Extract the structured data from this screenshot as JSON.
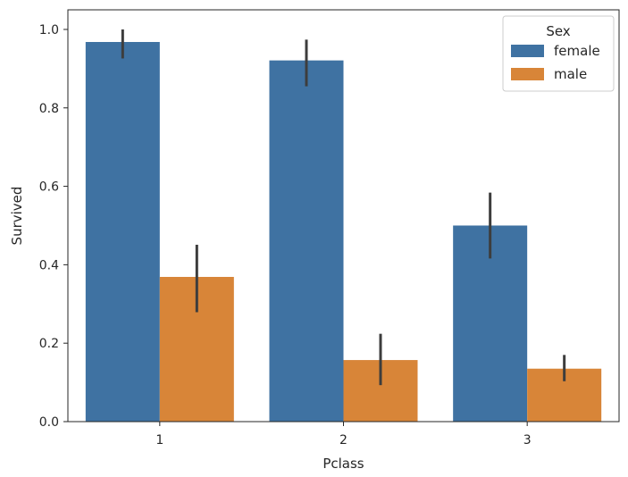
{
  "chart_data": {
    "type": "bar",
    "categories": [
      "1",
      "2",
      "3"
    ],
    "series": [
      {
        "name": "female",
        "color": "#3f72a2",
        "values": [
          0.968,
          0.921,
          0.5
        ],
        "ci": [
          [
            0.926,
            1.0
          ],
          [
            0.855,
            0.974
          ],
          [
            0.416,
            0.584
          ]
        ]
      },
      {
        "name": "male",
        "color": "#d88538",
        "values": [
          0.369,
          0.157,
          0.135
        ],
        "ci": [
          [
            0.279,
            0.451
          ],
          [
            0.093,
            0.224
          ],
          [
            0.103,
            0.17
          ]
        ]
      }
    ],
    "xlabel": "Pclass",
    "ylabel": "Survived",
    "ylim": [
      0,
      1.05
    ],
    "yticks": [
      "0.0",
      "0.2",
      "0.4",
      "0.6",
      "0.8",
      "1.0"
    ],
    "legend": {
      "title": "Sex",
      "placement": "top-right"
    },
    "grid": false
  }
}
